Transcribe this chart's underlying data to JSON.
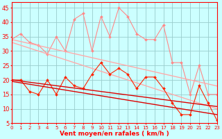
{
  "x": [
    0,
    1,
    2,
    3,
    4,
    5,
    6,
    7,
    8,
    9,
    10,
    11,
    12,
    13,
    14,
    15,
    16,
    17,
    18,
    19,
    20,
    21,
    22,
    23
  ],
  "series": [
    {
      "name": "rafales_line",
      "color": "#ff8888",
      "marker": "D",
      "markersize": 2.0,
      "linewidth": 0.8,
      "y": [
        34,
        36,
        33,
        32,
        29,
        35,
        30,
        41,
        43,
        30,
        42,
        35,
        45,
        42,
        36,
        34,
        34,
        39,
        26,
        26,
        15,
        25,
        15,
        15
      ]
    },
    {
      "name": "rafales_trend1",
      "color": "#ffaaaa",
      "marker": null,
      "markersize": 0,
      "linewidth": 1.0,
      "y": [
        34.0,
        33.3,
        32.6,
        31.9,
        31.2,
        30.5,
        29.8,
        29.1,
        28.4,
        27.7,
        27.0,
        26.3,
        25.6,
        24.9,
        24.2,
        23.5,
        22.8,
        22.1,
        21.4,
        20.7,
        20.0,
        19.3,
        18.6,
        17.9
      ]
    },
    {
      "name": "rafales_trend2",
      "color": "#ffaaaa",
      "marker": null,
      "markersize": 0,
      "linewidth": 1.0,
      "y": [
        33.0,
        32.0,
        31.0,
        30.0,
        29.0,
        28.0,
        27.0,
        26.0,
        25.0,
        24.0,
        23.0,
        22.0,
        21.0,
        20.0,
        19.0,
        18.0,
        17.0,
        16.0,
        15.0,
        14.0,
        13.0,
        12.0,
        11.0,
        10.0
      ]
    },
    {
      "name": "vent_line",
      "color": "#ff2200",
      "marker": "D",
      "markersize": 2.0,
      "linewidth": 0.8,
      "y": [
        20,
        20,
        16,
        15,
        20,
        15,
        21,
        18,
        17,
        22,
        26,
        22,
        24,
        22,
        17,
        21,
        21,
        17,
        12,
        8,
        8,
        18,
        12,
        6
      ]
    },
    {
      "name": "vent_trend1",
      "color": "#dd0000",
      "marker": null,
      "markersize": 0,
      "linewidth": 1.0,
      "y": [
        20.0,
        19.6,
        19.2,
        18.8,
        18.4,
        18.0,
        17.6,
        17.2,
        16.8,
        16.4,
        16.0,
        15.6,
        15.2,
        14.8,
        14.4,
        14.0,
        13.6,
        13.2,
        12.8,
        12.4,
        12.0,
        11.6,
        11.2,
        10.8
      ]
    },
    {
      "name": "vent_trend2",
      "color": "#dd0000",
      "marker": null,
      "markersize": 0,
      "linewidth": 1.0,
      "y": [
        19.5,
        19.0,
        18.5,
        18.0,
        17.5,
        17.0,
        16.5,
        16.0,
        15.5,
        15.0,
        14.5,
        14.0,
        13.5,
        13.0,
        12.5,
        12.0,
        11.5,
        11.0,
        10.5,
        10.0,
        9.5,
        9.0,
        8.5,
        8.0
      ]
    }
  ],
  "xlim": [
    0,
    23
  ],
  "ylim": [
    5,
    47
  ],
  "yticks": [
    5,
    10,
    15,
    20,
    25,
    30,
    35,
    40,
    45
  ],
  "xticks": [
    0,
    1,
    2,
    3,
    4,
    5,
    6,
    7,
    8,
    9,
    10,
    11,
    12,
    13,
    14,
    15,
    16,
    17,
    18,
    19,
    20,
    21,
    22,
    23
  ],
  "xlabel": "Vent moyen/en rafales ( km/h )",
  "background_color": "#ccffff",
  "grid_color": "#99cccc",
  "axis_color": "#ff0000",
  "xlabel_color": "#ff0000",
  "tick_color": "#ff0000",
  "xlabel_fontsize": 6.5,
  "ytick_fontsize": 6,
  "xtick_fontsize": 5
}
